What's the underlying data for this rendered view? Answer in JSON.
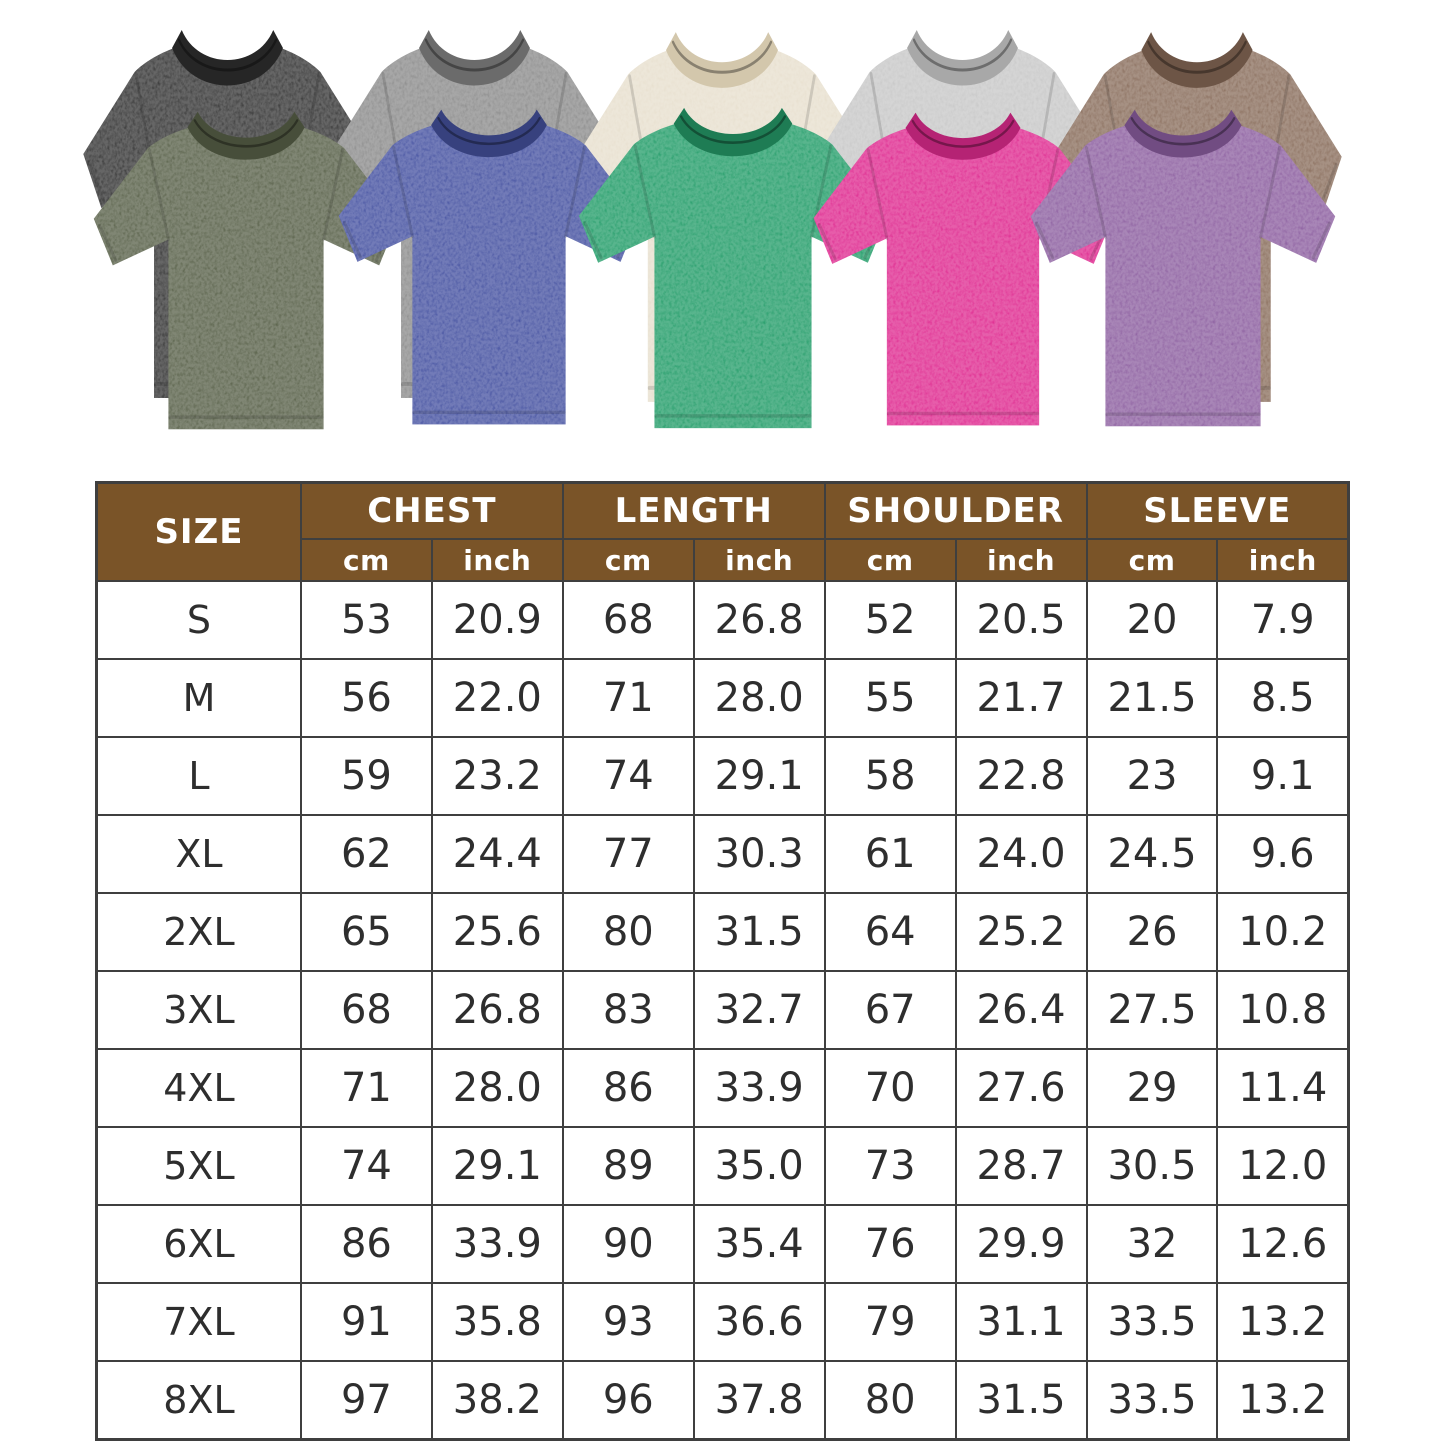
{
  "canvas": {
    "background": "#ffffff"
  },
  "gallery": {
    "description": "acid-washed oversized t-shirts in ten colors",
    "back_row": [
      {
        "name": "black",
        "body": "#3b3b3b",
        "collar": "#262626"
      },
      {
        "name": "gray",
        "body": "#8f8f8f",
        "collar": "#6b6b6b"
      },
      {
        "name": "cream",
        "body": "#e8e0cf",
        "collar": "#d3c7ac"
      },
      {
        "name": "light-gray",
        "body": "#c9c9c9",
        "collar": "#a8a8a8"
      },
      {
        "name": "brown",
        "body": "#8d7261",
        "collar": "#6d5546"
      }
    ],
    "front_row": [
      {
        "name": "army-green",
        "body": "#5d654e",
        "collar": "#474e3a"
      },
      {
        "name": "blue",
        "body": "#4b57a4",
        "collar": "#37417e"
      },
      {
        "name": "green",
        "body": "#2aa06e",
        "collar": "#1e7c54"
      },
      {
        "name": "hot-pink",
        "body": "#e03093",
        "collar": "#b52374"
      },
      {
        "name": "purple",
        "body": "#9064a3",
        "collar": "#714c82"
      }
    ]
  },
  "size_chart": {
    "header_bg": "#7a5428",
    "header_text": "#ffffff",
    "border_color": "#3f3f3f",
    "size_label": "SIZE",
    "measurements": [
      {
        "label": "CHEST"
      },
      {
        "label": "LENGTH"
      },
      {
        "label": "SHOULDER"
      },
      {
        "label": "SLEEVE"
      }
    ],
    "units": {
      "cm": "cm",
      "inch": "inch"
    },
    "rows": [
      {
        "size": "S",
        "values": [
          "53",
          "20.9",
          "68",
          "26.8",
          "52",
          "20.5",
          "20",
          "7.9"
        ]
      },
      {
        "size": "M",
        "values": [
          "56",
          "22.0",
          "71",
          "28.0",
          "55",
          "21.7",
          "21.5",
          "8.5"
        ]
      },
      {
        "size": "L",
        "values": [
          "59",
          "23.2",
          "74",
          "29.1",
          "58",
          "22.8",
          "23",
          "9.1"
        ]
      },
      {
        "size": "XL",
        "values": [
          "62",
          "24.4",
          "77",
          "30.3",
          "61",
          "24.0",
          "24.5",
          "9.6"
        ]
      },
      {
        "size": "2XL",
        "values": [
          "65",
          "25.6",
          "80",
          "31.5",
          "64",
          "25.2",
          "26",
          "10.2"
        ]
      },
      {
        "size": "3XL",
        "values": [
          "68",
          "26.8",
          "83",
          "32.7",
          "67",
          "26.4",
          "27.5",
          "10.8"
        ]
      },
      {
        "size": "4XL",
        "values": [
          "71",
          "28.0",
          "86",
          "33.9",
          "70",
          "27.6",
          "29",
          "11.4"
        ]
      },
      {
        "size": "5XL",
        "values": [
          "74",
          "29.1",
          "89",
          "35.0",
          "73",
          "28.7",
          "30.5",
          "12.0"
        ]
      },
      {
        "size": "6XL",
        "values": [
          "86",
          "33.9",
          "90",
          "35.4",
          "76",
          "29.9",
          "32",
          "12.6"
        ]
      },
      {
        "size": "7XL",
        "values": [
          "91",
          "35.8",
          "93",
          "36.6",
          "79",
          "31.1",
          "33.5",
          "13.2"
        ]
      },
      {
        "size": "8XL",
        "values": [
          "97",
          "38.2",
          "96",
          "37.8",
          "80",
          "31.5",
          "33.5",
          "13.2"
        ]
      }
    ]
  }
}
